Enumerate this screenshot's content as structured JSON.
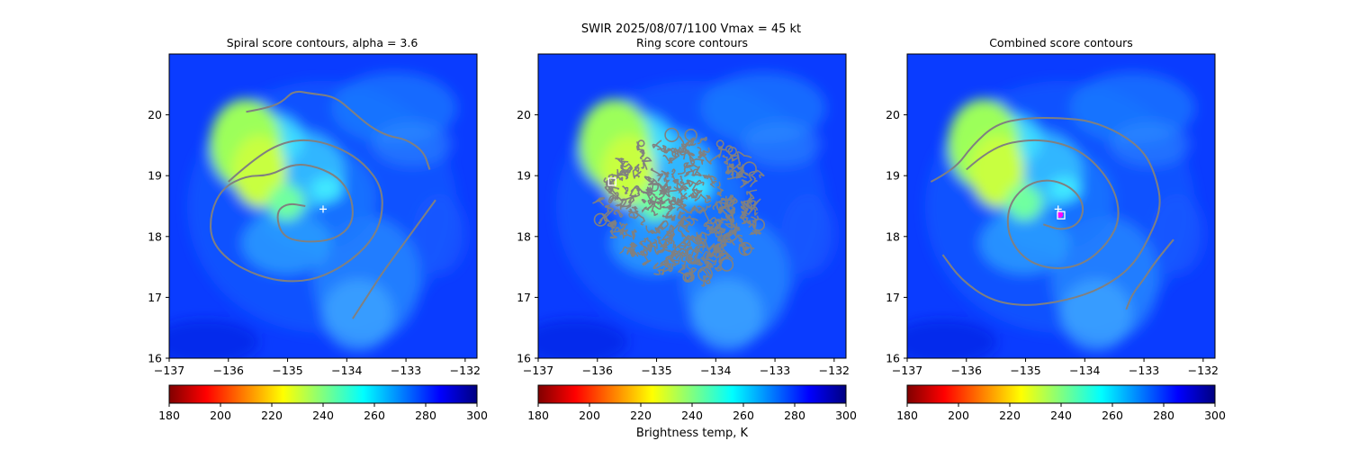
{
  "figure": {
    "suptitle": "SWIR  2025/08/07/1100    Vmax = 45 kt",
    "colorbar_label": "Brightness temp, K"
  },
  "colors": {
    "background_blue": "#0a3cff",
    "contour_gray": "#808080",
    "center_marker": "#ffffff",
    "best_marker": "#ff00ff"
  },
  "colormap": {
    "name": "jet_r",
    "range": [
      180,
      300
    ],
    "ticks": [
      180,
      200,
      220,
      240,
      260,
      280,
      300
    ]
  },
  "chart_data": [
    {
      "type": "heatmap",
      "title": "Spiral score contours, alpha =  3.6",
      "xlim": [
        -137,
        -131.8
      ],
      "ylim": [
        16,
        21
      ],
      "xticks": [
        -137,
        -136,
        -135,
        -134,
        -133,
        -132
      ],
      "yticks": [
        16,
        17,
        18,
        19,
        20
      ],
      "center_marker": {
        "lon": -134.4,
        "lat": 18.45,
        "symbol": "+"
      },
      "contours": [
        [
          [
            -135.7,
            20.05
          ],
          [
            -135.4,
            20.1
          ],
          [
            -135.1,
            20.2
          ],
          [
            -134.9,
            20.4
          ],
          [
            -134.6,
            20.35
          ],
          [
            -134.2,
            20.3
          ],
          [
            -133.9,
            20.05
          ],
          [
            -133.6,
            19.8
          ],
          [
            -133.3,
            19.65
          ],
          [
            -133.0,
            19.6
          ],
          [
            -132.7,
            19.4
          ],
          [
            -132.6,
            19.1
          ]
        ],
        [
          [
            -136.0,
            18.9
          ],
          [
            -135.6,
            19.25
          ],
          [
            -135.1,
            19.55
          ],
          [
            -134.6,
            19.6
          ],
          [
            -134.1,
            19.45
          ],
          [
            -133.7,
            19.2
          ],
          [
            -133.4,
            18.8
          ],
          [
            -133.4,
            18.3
          ],
          [
            -133.6,
            17.9
          ],
          [
            -134.0,
            17.55
          ],
          [
            -134.5,
            17.3
          ],
          [
            -135.0,
            17.25
          ],
          [
            -135.5,
            17.35
          ],
          [
            -136.0,
            17.6
          ],
          [
            -136.3,
            17.95
          ],
          [
            -136.3,
            18.4
          ],
          [
            -136.1,
            18.8
          ],
          [
            -135.7,
            19.0
          ],
          [
            -135.3,
            19.0
          ],
          [
            -134.9,
            19.2
          ],
          [
            -134.5,
            19.15
          ],
          [
            -134.1,
            18.95
          ],
          [
            -133.9,
            18.6
          ],
          [
            -133.9,
            18.2
          ],
          [
            -134.2,
            17.95
          ],
          [
            -134.7,
            17.9
          ],
          [
            -135.1,
            18.0
          ],
          [
            -135.2,
            18.4
          ],
          [
            -135.0,
            18.55
          ],
          [
            -134.7,
            18.5
          ]
        ],
        [
          [
            -132.5,
            18.6
          ],
          [
            -132.8,
            18.2
          ],
          [
            -133.1,
            17.8
          ],
          [
            -133.4,
            17.4
          ],
          [
            -133.6,
            17.1
          ],
          [
            -133.8,
            16.8
          ],
          [
            -133.9,
            16.65
          ]
        ]
      ]
    },
    {
      "type": "heatmap",
      "title": "Ring score contours",
      "xlim": [
        -137,
        -131.8
      ],
      "ylim": [
        16,
        21
      ],
      "xticks": [
        -137,
        -136,
        -135,
        -134,
        -133,
        -132
      ],
      "yticks": [
        16,
        17,
        18,
        19,
        20
      ],
      "square_marker": {
        "lon": -135.75,
        "lat": 18.9,
        "symbol": "square"
      },
      "ring_region": {
        "lon_min": -136.0,
        "lon_max": -133.2,
        "lat_min": 17.3,
        "lat_max": 19.7
      }
    },
    {
      "type": "heatmap",
      "title": "Combined score contours",
      "xlim": [
        -137,
        -131.8
      ],
      "ylim": [
        16,
        21
      ],
      "xticks": [
        -137,
        -136,
        -135,
        -134,
        -133,
        -132
      ],
      "yticks": [
        16,
        17,
        18,
        19,
        20
      ],
      "center_marker": {
        "lon": -134.45,
        "lat": 18.45,
        "symbol": "+"
      },
      "square_marker": {
        "lon": -134.4,
        "lat": 18.35,
        "symbol": "square"
      },
      "best_marker": {
        "lon": -134.42,
        "lat": 18.36,
        "symbol": "x"
      },
      "contours": [
        [
          [
            -136.6,
            18.9
          ],
          [
            -136.2,
            19.1
          ],
          [
            -135.9,
            19.5
          ],
          [
            -135.5,
            19.85
          ],
          [
            -135.0,
            19.95
          ],
          [
            -134.4,
            19.95
          ],
          [
            -133.9,
            19.9
          ],
          [
            -133.4,
            19.7
          ],
          [
            -133.0,
            19.4
          ],
          [
            -132.8,
            19.0
          ],
          [
            -132.7,
            18.5
          ],
          [
            -132.9,
            18.0
          ],
          [
            -133.2,
            17.5
          ],
          [
            -133.7,
            17.15
          ],
          [
            -134.3,
            16.95
          ],
          [
            -135.0,
            16.85
          ],
          [
            -135.6,
            16.95
          ],
          [
            -136.1,
            17.3
          ],
          [
            -136.4,
            17.7
          ]
        ],
        [
          [
            -136.0,
            19.1
          ],
          [
            -135.6,
            19.45
          ],
          [
            -135.0,
            19.6
          ],
          [
            -134.4,
            19.55
          ],
          [
            -133.9,
            19.3
          ],
          [
            -133.5,
            18.8
          ],
          [
            -133.4,
            18.3
          ],
          [
            -133.6,
            17.9
          ],
          [
            -134.0,
            17.55
          ],
          [
            -134.5,
            17.45
          ],
          [
            -135.0,
            17.6
          ],
          [
            -135.3,
            18.0
          ],
          [
            -135.3,
            18.5
          ],
          [
            -135.0,
            18.85
          ],
          [
            -134.6,
            18.95
          ],
          [
            -134.2,
            18.8
          ],
          [
            -134.0,
            18.5
          ],
          [
            -134.1,
            18.2
          ],
          [
            -134.4,
            18.1
          ],
          [
            -134.7,
            18.2
          ]
        ],
        [
          [
            -132.5,
            17.95
          ],
          [
            -132.8,
            17.6
          ],
          [
            -133.0,
            17.3
          ],
          [
            -133.2,
            17.05
          ],
          [
            -133.3,
            16.8
          ]
        ]
      ]
    }
  ]
}
